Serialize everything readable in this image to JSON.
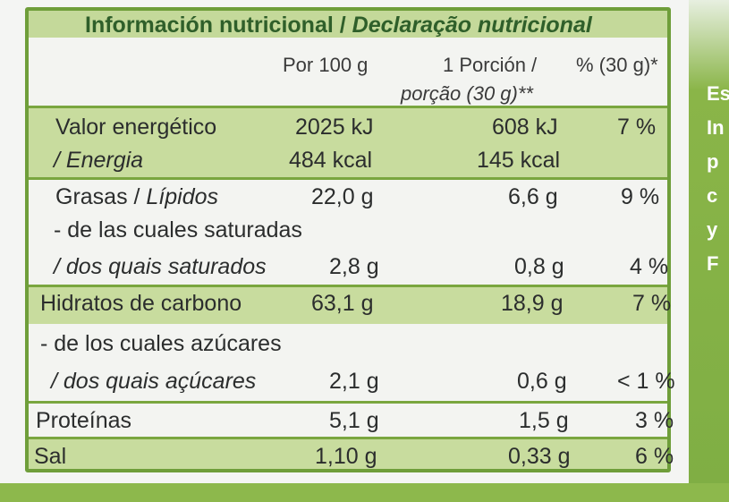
{
  "title_plain": "Información nutricional / ",
  "title_italic": "Declaração nutricional",
  "columns": {
    "per100": "Por 100 g",
    "portion_line1": "1 Porción /",
    "portion_line2": "porção (30 g)**",
    "percent": "% (30 g)*"
  },
  "rows": [
    {
      "label": "Valor energético",
      "per100": "2025 kJ",
      "portion": "608 kJ",
      "percent": "7 %"
    },
    {
      "label": "/ Energia",
      "per100": "484 kcal",
      "portion": "145 kcal",
      "percent": ""
    },
    {
      "label": "Grasas / ",
      "label_it": "Lípidos",
      "per100": "22,0 g",
      "portion": "6,6 g",
      "percent": "9 %"
    },
    {
      "label": "- de las cuales saturadas",
      "per100": "",
      "portion": "",
      "percent": ""
    },
    {
      "label": "/ dos quais saturados",
      "per100": "2,8 g",
      "portion": "0,8 g",
      "percent": "4 %"
    },
    {
      "label": "Hidratos de carbono",
      "per100": "63,1 g",
      "portion": "18,9 g",
      "percent": "7 %"
    },
    {
      "label": "- de los cuales azúcares",
      "per100": "",
      "portion": "",
      "percent": ""
    },
    {
      "label": "/ dos quais açúcares",
      "per100": "2,1 g",
      "portion": "0,6 g",
      "percent": "< 1 %"
    },
    {
      "label": "Proteínas",
      "per100": "5,1 g",
      "portion": "1,5 g",
      "percent": "3 %"
    },
    {
      "label": "Sal",
      "per100": "1,10 g",
      "portion": "0,33 g",
      "percent": "6 %"
    }
  ],
  "side_letters": [
    "Es",
    "In",
    "p",
    "c",
    "y",
    "F"
  ],
  "colors": {
    "frame": "#6f9e3a",
    "band": "#c8dc9e",
    "title": "#2f5f2a",
    "brand_green": "#8fb84a"
  }
}
